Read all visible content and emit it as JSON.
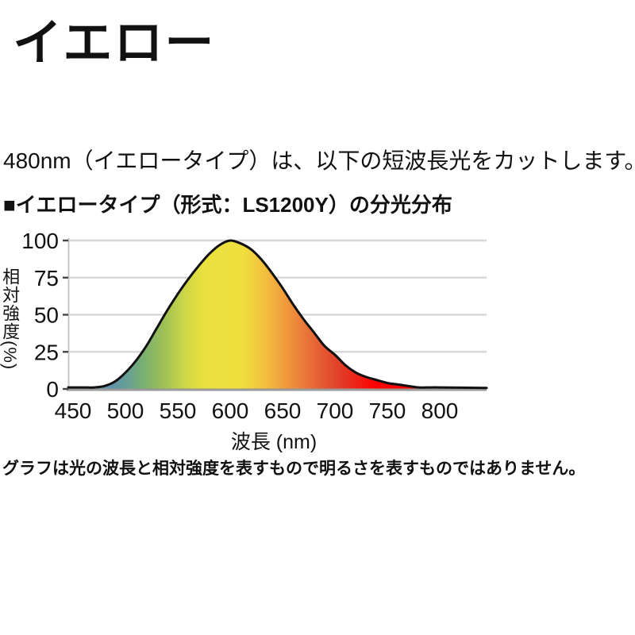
{
  "page": {
    "title": "イエロー",
    "description": "480nm（イエロータイプ）は、以下の短波長光をカットします。",
    "chart_heading": "■イエロータイプ（形式：LS1200Y）の分光分布",
    "footnote": "グラフは光の波長と相対強度を表すもので明るさを表すものではありません。"
  },
  "chart_data": {
    "type": "area",
    "title": "イエロータイプ（形式：LS1200Y）の分光分布",
    "xlabel": "波長 (nm)",
    "ylabel": "相対強度(%)",
    "xlim": [
      450,
      800
    ],
    "ylim": [
      0,
      100
    ],
    "x_ticks": [
      450,
      500,
      550,
      600,
      650,
      700,
      750,
      800
    ],
    "y_ticks": [
      0,
      25,
      50,
      75,
      100
    ],
    "grid": "horizontal",
    "x": [
      450,
      460,
      470,
      480,
      490,
      500,
      510,
      520,
      530,
      540,
      550,
      560,
      570,
      580,
      590,
      600,
      610,
      620,
      630,
      640,
      650,
      660,
      670,
      680,
      690,
      700,
      710,
      720,
      730,
      740,
      750,
      760,
      770,
      780,
      790,
      800
    ],
    "y": [
      1,
      1,
      1,
      2,
      5,
      11,
      19,
      29,
      41,
      53,
      64,
      74,
      83,
      91,
      97,
      100,
      98,
      94,
      87,
      78,
      68,
      57,
      47,
      38,
      29,
      23,
      16,
      11,
      8,
      6,
      4,
      3,
      2,
      1,
      1,
      1
    ],
    "annotation": "spectral power distribution filled with wavelength rainbow gradient",
    "colors": {
      "curve_outline": "#111111",
      "axis": "#9a9a9a",
      "axis_left": "#c2c2c2",
      "gridline": "#d8d8d8",
      "tick_mark": "#444444"
    },
    "gradient_stops": [
      {
        "nm": 450,
        "color": "#5e93a8"
      },
      {
        "nm": 488,
        "color": "#5e93a8"
      },
      {
        "nm": 502,
        "color": "#67a094"
      },
      {
        "nm": 516,
        "color": "#77ae72"
      },
      {
        "nm": 536,
        "color": "#9dc055"
      },
      {
        "nm": 556,
        "color": "#ccd647"
      },
      {
        "nm": 574,
        "color": "#e9e13e"
      },
      {
        "nm": 612,
        "color": "#f0df3e"
      },
      {
        "nm": 632,
        "color": "#f2c13e"
      },
      {
        "nm": 652,
        "color": "#f09c3c"
      },
      {
        "nm": 670,
        "color": "#ea7a3a"
      },
      {
        "nm": 688,
        "color": "#e45832"
      },
      {
        "nm": 706,
        "color": "#e13c26"
      },
      {
        "nm": 722,
        "color": "#ee2016"
      },
      {
        "nm": 738,
        "color": "#ff0000"
      },
      {
        "nm": 800,
        "color": "#ff0000"
      }
    ]
  }
}
